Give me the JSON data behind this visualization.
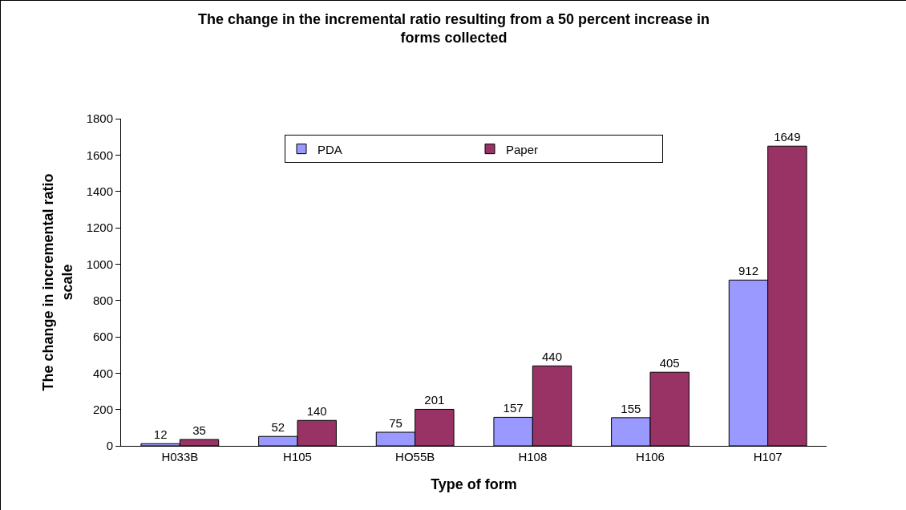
{
  "chart_data": {
    "type": "bar",
    "title": "The change in the incremental ratio resulting from a 50 percent increase in\nforms collected",
    "xlabel": "Type of form",
    "ylabel": "The change in incremental ratio\nscale",
    "categories": [
      "H033B",
      "H105",
      "HO55B",
      "H108",
      "H106",
      "H107"
    ],
    "series": [
      {
        "name": "PDA",
        "color": "#9999ff",
        "values": [
          12,
          52,
          75,
          157,
          155,
          912
        ]
      },
      {
        "name": "Paper",
        "color": "#993366",
        "values": [
          35,
          140,
          201,
          440,
          405,
          1649
        ]
      }
    ],
    "ylim": [
      0,
      1800
    ],
    "yticks": [
      0,
      200,
      400,
      600,
      800,
      1000,
      1200,
      1400,
      1600,
      1800
    ],
    "grid": false,
    "legend": "top",
    "data_labels": true
  }
}
